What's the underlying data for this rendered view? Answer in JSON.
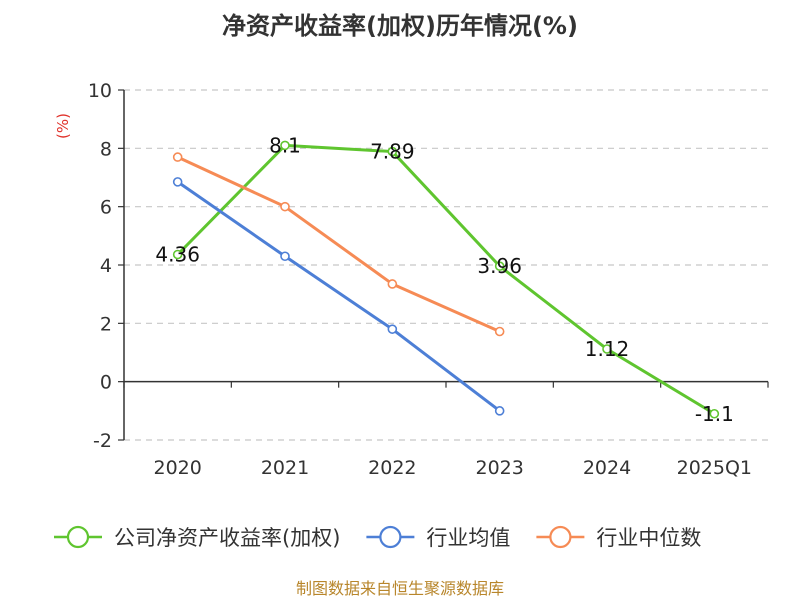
{
  "chart_data": {
    "type": "line",
    "title": "净资产收益率(加权)历年情况(%)",
    "ylabel": "(%)",
    "xlabel": "",
    "categories": [
      "2020",
      "2021",
      "2022",
      "2023",
      "2024",
      "2025Q1"
    ],
    "ylim": [
      -2,
      10
    ],
    "yticks": [
      10,
      8,
      6,
      4,
      2,
      0,
      -2
    ],
    "grid": true,
    "legend_position": "bottom",
    "series": [
      {
        "name": "公司净资产收益率(加权)",
        "color": "#5fc52f",
        "values": [
          4.36,
          8.1,
          7.89,
          3.96,
          1.12,
          -1.1
        ],
        "labels": [
          "4.36",
          "8.1",
          "7.89",
          "3.96",
          "1.12",
          "-1.1"
        ]
      },
      {
        "name": "行业均值",
        "color": "#4d7fd6",
        "values": [
          6.85,
          4.3,
          1.8,
          -1.0,
          null,
          null
        ]
      },
      {
        "name": "行业中位数",
        "color": "#f68b55",
        "values": [
          7.7,
          6.0,
          3.35,
          1.72,
          null,
          null
        ]
      }
    ]
  },
  "footer": {
    "source": "制图数据来自恒生聚源数据库"
  }
}
